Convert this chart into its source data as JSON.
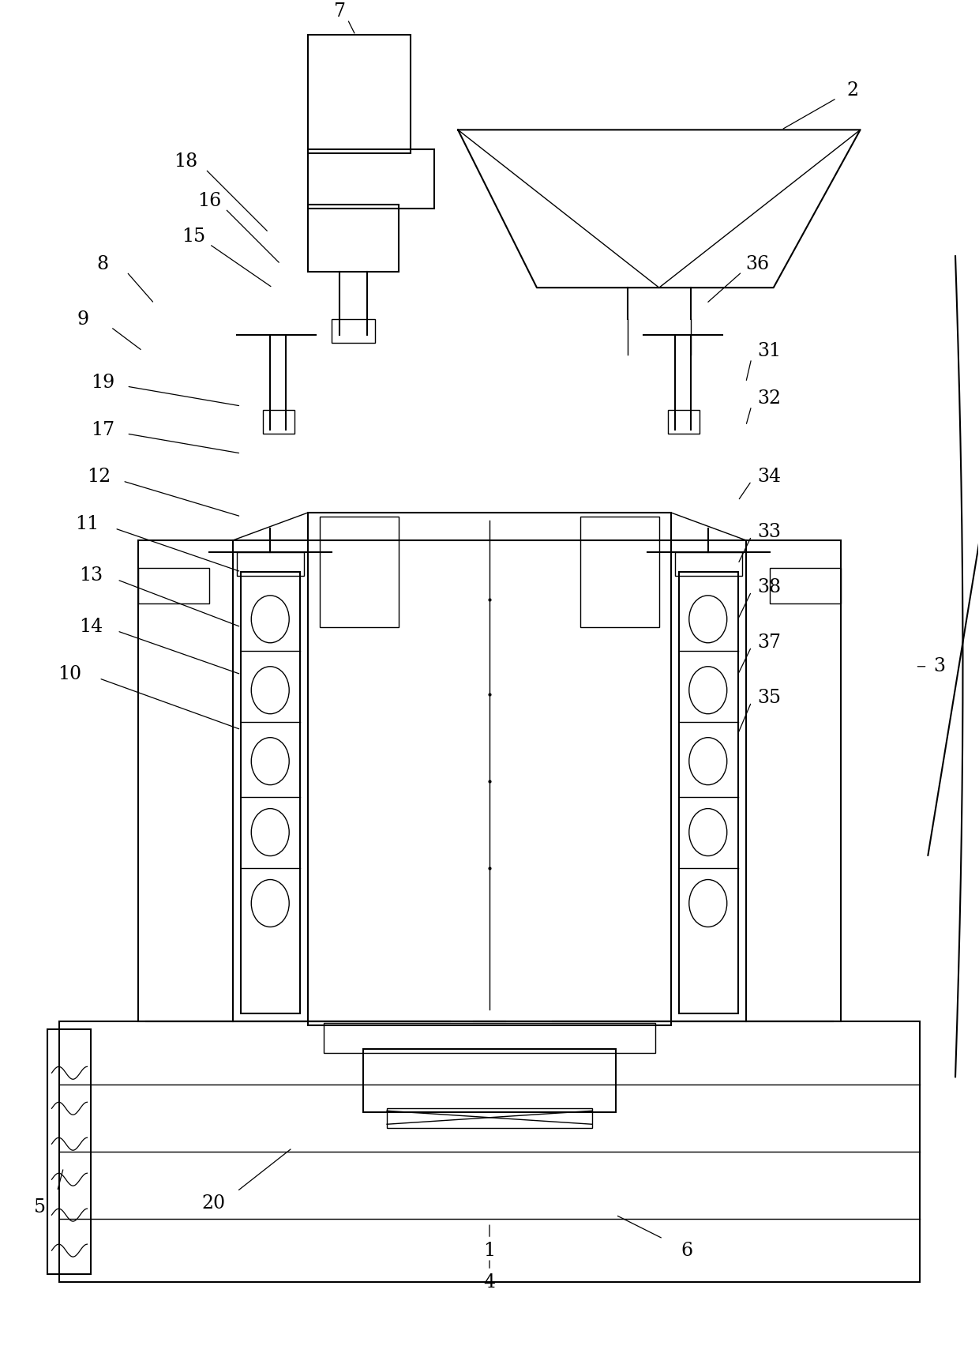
{
  "bg_color": "#ffffff",
  "lc": "#000000",
  "lw": 1.5,
  "lw_thin": 1.0,
  "fig_width": 12.4,
  "fig_height": 17.23
}
